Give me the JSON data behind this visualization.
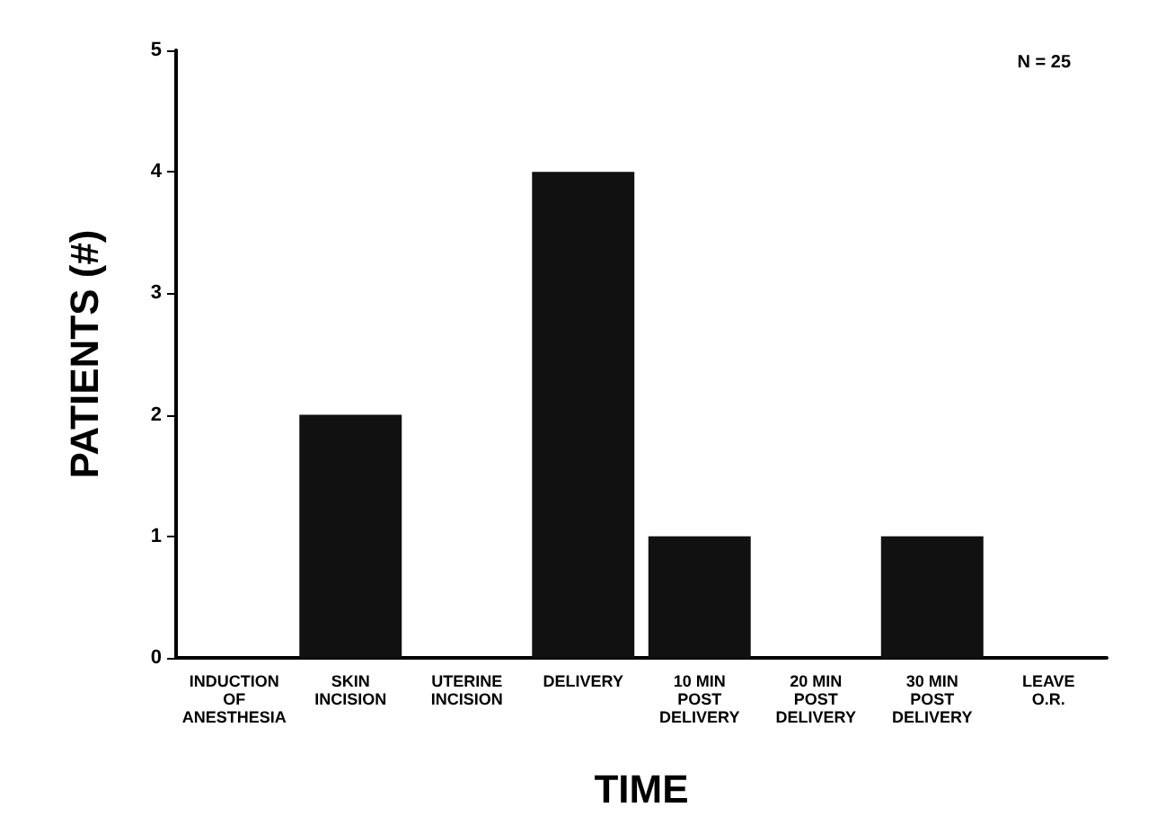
{
  "chart_data": {
    "type": "bar",
    "xlabel": "TIME",
    "ylabel": "PATIENTS (#)",
    "categories": [
      "INDUCTION\nOF\nANESTHESIA",
      "SKIN\nINCISION",
      "UTERINE\nINCISION",
      "DELIVERY",
      "10 MIN\nPOST\nDELIVERY",
      "20 MIN\nPOST\nDELIVERY",
      "30 MIN\nPOST\nDELIVERY",
      "LEAVE\nO.R."
    ],
    "values": [
      0,
      2,
      0,
      4,
      1,
      0,
      1,
      0
    ],
    "color": "#111111",
    "ylim": [
      0,
      5
    ],
    "yticks": [
      0,
      1,
      2,
      3,
      4,
      5
    ],
    "grid": false,
    "annotations": [
      "N = 25"
    ]
  }
}
